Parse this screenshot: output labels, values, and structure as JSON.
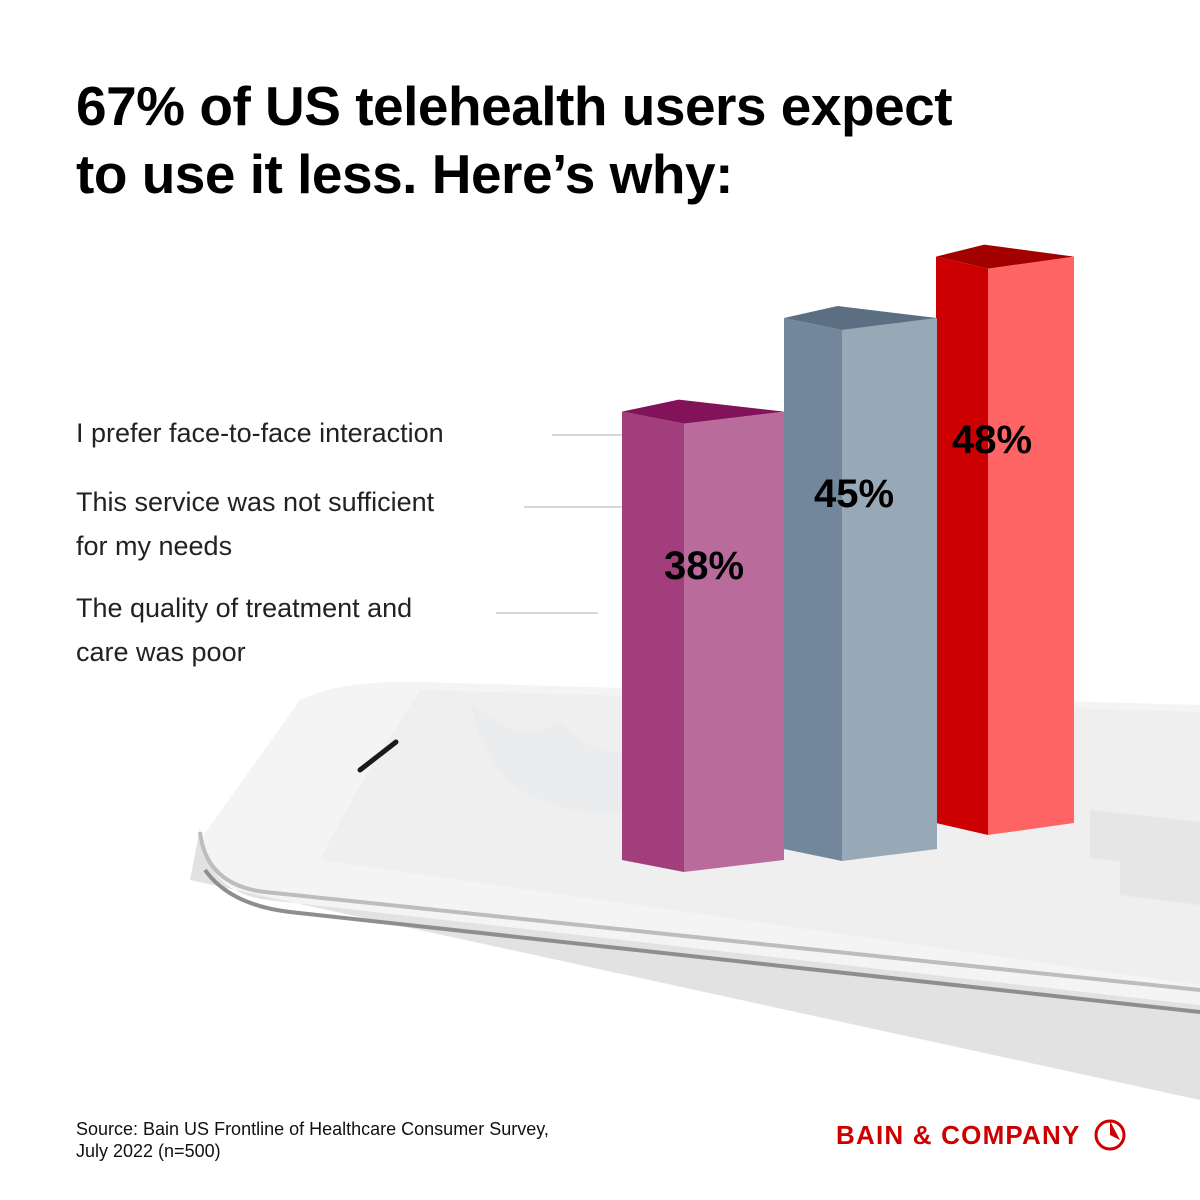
{
  "title": {
    "line1": "67% of US telehealth users expect",
    "line2": "to use it less. Here’s why:"
  },
  "chart_data": {
    "type": "bar",
    "title": "67% of US telehealth users expect to use it less. Here’s why:",
    "categories": [
      "I prefer face-to-face interaction",
      "This service was not sufficient for my needs",
      "The quality of treatment and care was poor"
    ],
    "values": [
      48,
      45,
      38
    ],
    "value_labels": [
      "48%",
      "45%",
      "38%"
    ],
    "unit": "%",
    "ylim": [
      0,
      100
    ],
    "xlabel": "",
    "ylabel": "",
    "legend": "none",
    "colors": {
      "face_to_face": {
        "front": "#ff6464",
        "side": "#cc0000",
        "top": "#a30000"
      },
      "not_sufficient": {
        "front": "#97a8b7",
        "side": "#72879c",
        "top": "#5c6f82"
      },
      "quality_poor": {
        "front": "#b96c9b",
        "side": "#a23e7b",
        "top": "#82135a"
      }
    }
  },
  "labels": {
    "face_to_face": [
      "I prefer face-to-face interaction"
    ],
    "not_sufficient": [
      "This service was not sufficient",
      "for my needs"
    ],
    "quality_poor": [
      "The quality of treatment and",
      "care was poor"
    ]
  },
  "source": {
    "line1": "Source: Bain US Frontline of Healthcare Consumer Survey,",
    "line2": "July 2022 (n=500)"
  },
  "logo": {
    "text": "BAIN & COMPANY",
    "color": "#cc0000"
  }
}
